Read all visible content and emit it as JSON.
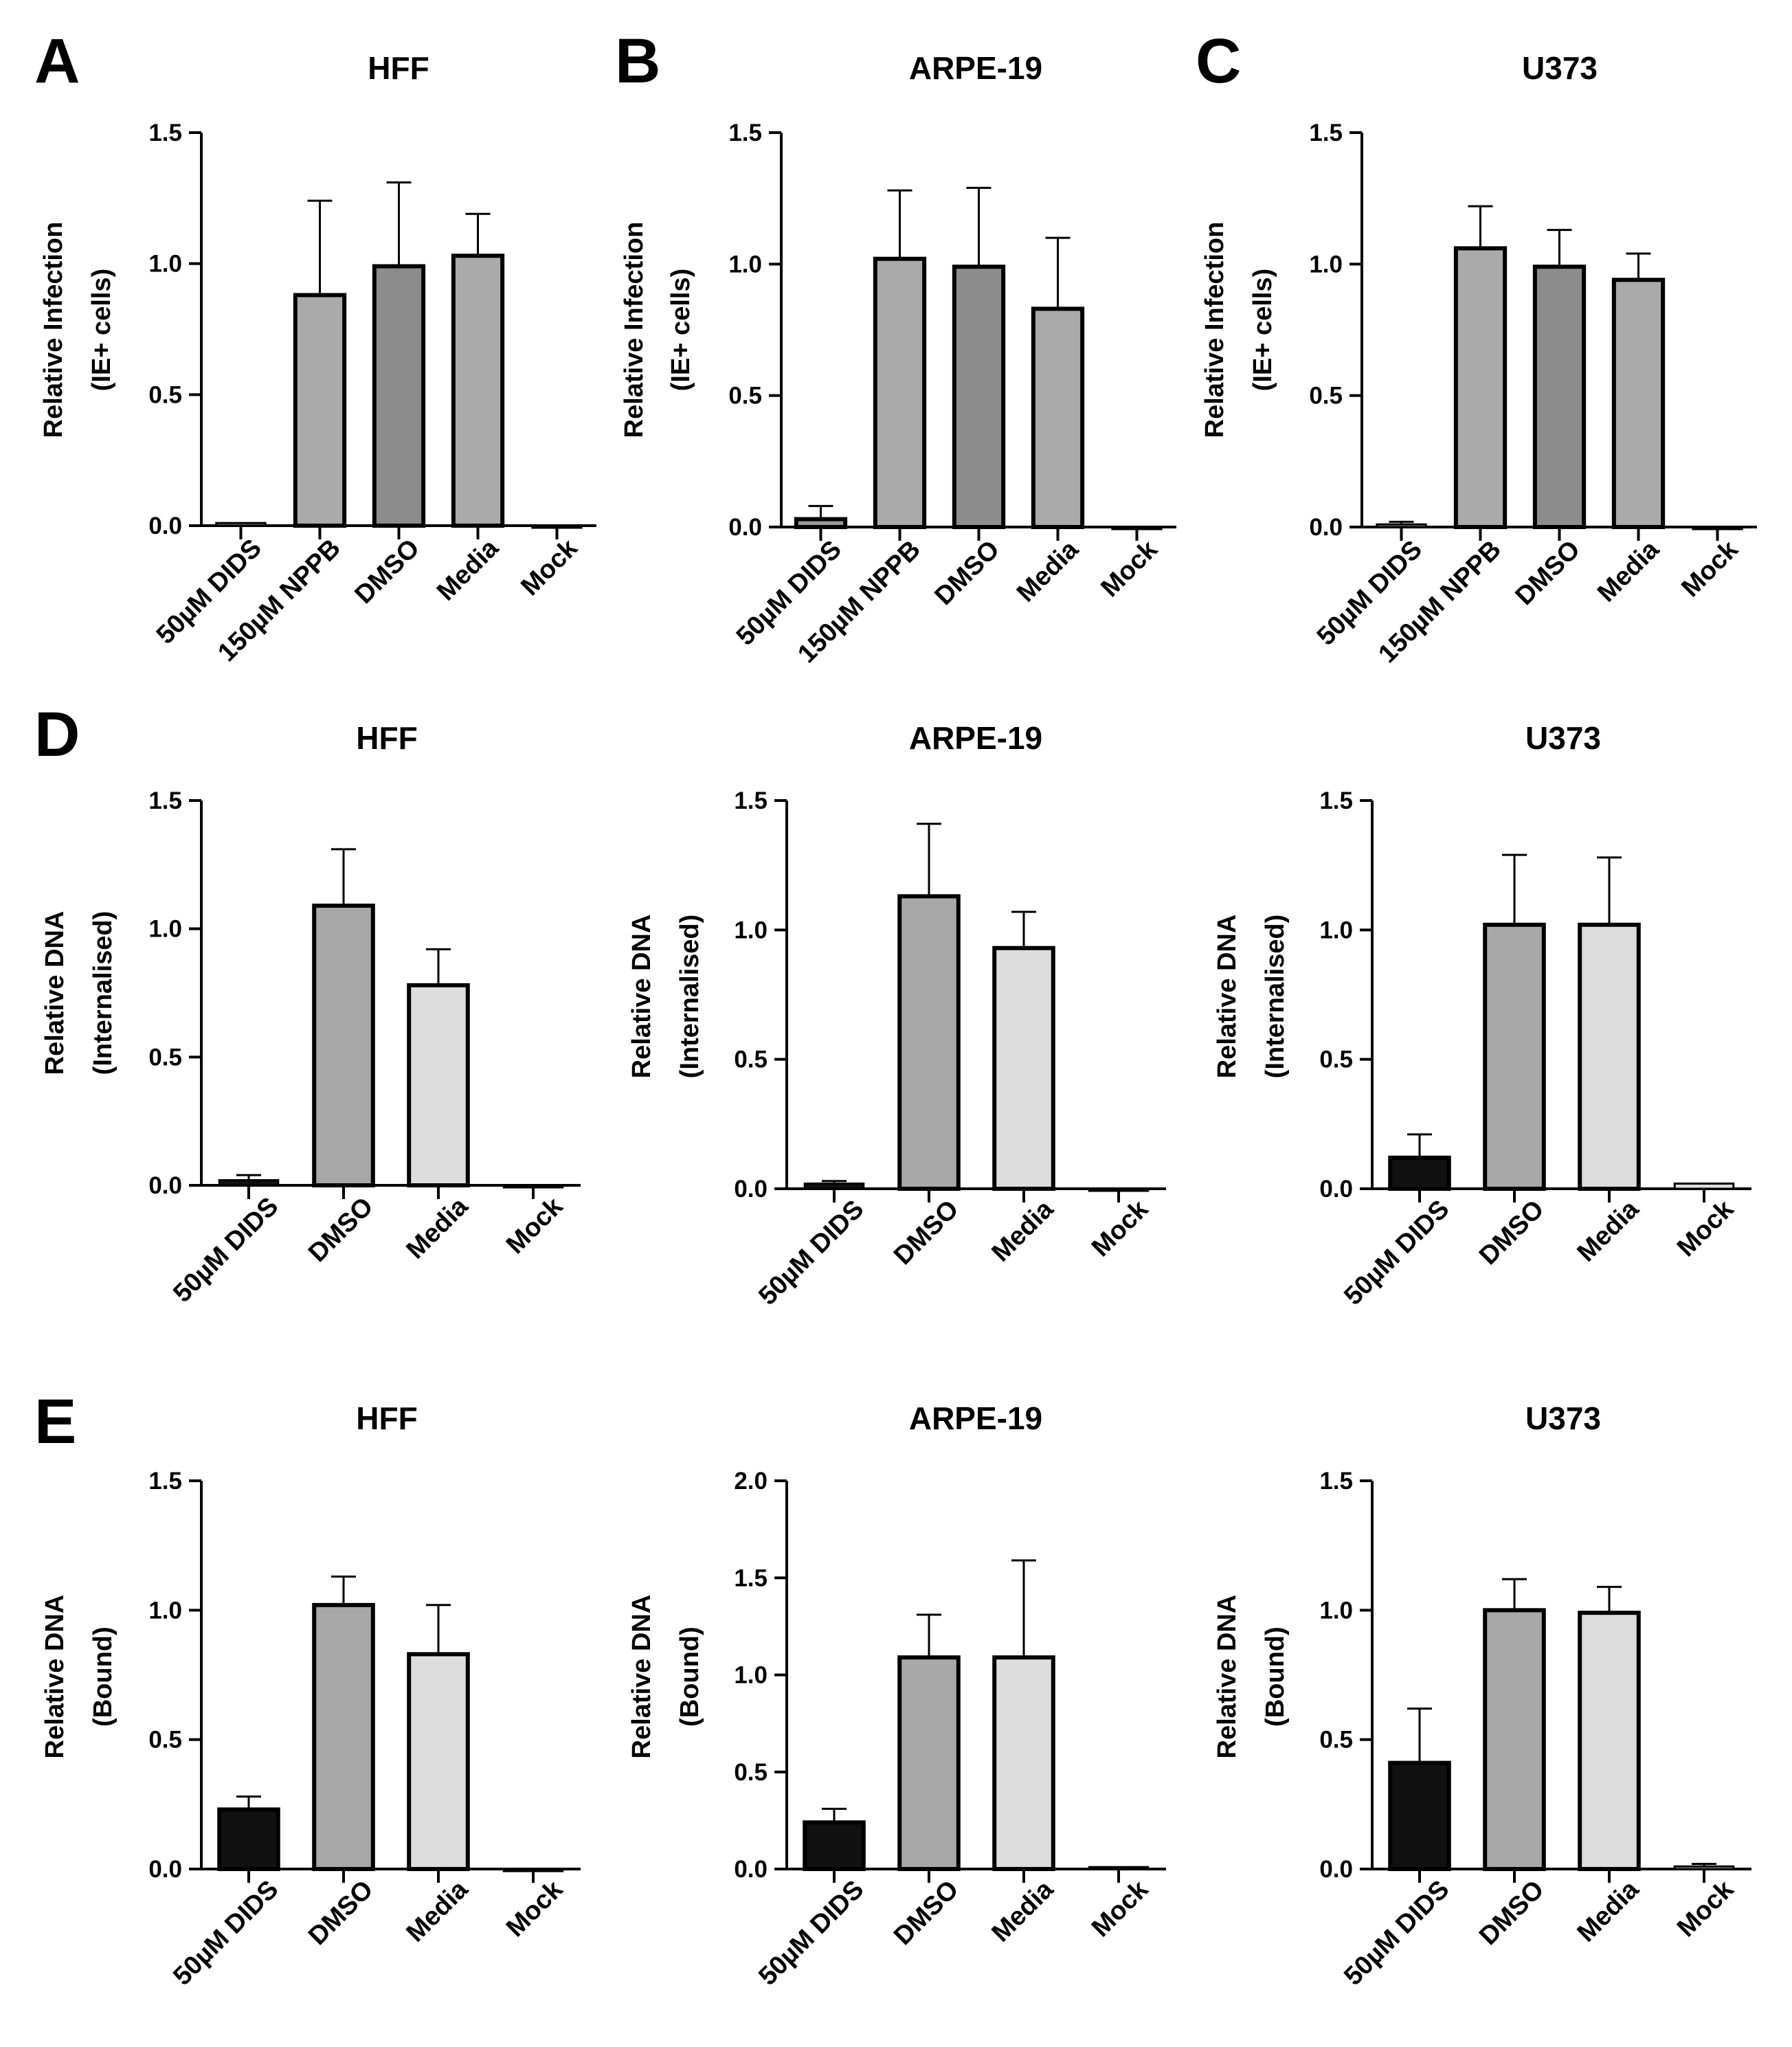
{
  "figure": {
    "panel_letters": [
      "A",
      "B",
      "C",
      "D",
      "E"
    ]
  },
  "chart_data": [
    {
      "type": "bar",
      "panel": "A",
      "title": "HFF",
      "ylabel": [
        "Relative Infection",
        "(IE+ cells)"
      ],
      "ylim": [
        0,
        1.5
      ],
      "yticks": [
        "0.0",
        "0.5",
        "1.0",
        "1.5"
      ],
      "categories": [
        "50µM DIDS",
        "150µM NPPB",
        "DMSO",
        "Media",
        "Mock"
      ],
      "values": [
        0.01,
        0.88,
        0.99,
        1.03,
        0.0
      ],
      "errors": [
        0.0,
        0.36,
        0.32,
        0.16,
        0.0
      ],
      "colors": [
        "#999999",
        "#aaaaaa",
        "#8c8c8c",
        "#aaaaaa",
        "#aaaaaa"
      ]
    },
    {
      "type": "bar",
      "panel": "B",
      "title": "ARPE-19",
      "ylabel": [
        "Relative Infection",
        "(IE+ cells)"
      ],
      "ylim": [
        0,
        1.5
      ],
      "yticks": [
        "0.0",
        "0.5",
        "1.0",
        "1.5"
      ],
      "categories": [
        "50µM DIDS",
        "150µM NPPB",
        "DMSO",
        "Media",
        "Mock"
      ],
      "values": [
        0.03,
        1.02,
        0.99,
        0.83,
        0.0
      ],
      "errors": [
        0.05,
        0.26,
        0.3,
        0.27,
        0.0
      ],
      "colors": [
        "#999999",
        "#aaaaaa",
        "#8c8c8c",
        "#aaaaaa",
        "#aaaaaa"
      ]
    },
    {
      "type": "bar",
      "panel": "C",
      "title": "U373",
      "ylabel": [
        "Relative Infection",
        "(IE+ cells)"
      ],
      "ylim": [
        0,
        1.5
      ],
      "yticks": [
        "0.0",
        "0.5",
        "1.0",
        "1.5"
      ],
      "categories": [
        "50µM DIDS",
        "150µM NPPB",
        "DMSO",
        "Media",
        "Mock"
      ],
      "values": [
        0.01,
        1.06,
        0.99,
        0.94,
        0.0
      ],
      "errors": [
        0.01,
        0.16,
        0.14,
        0.1,
        0.0
      ],
      "colors": [
        "#999999",
        "#aaaaaa",
        "#8c8c8c",
        "#aaaaaa",
        "#aaaaaa"
      ]
    },
    {
      "type": "bar",
      "panel": "D",
      "title": "HFF",
      "ylabel": [
        "Relative DNA",
        "(Internalised)"
      ],
      "ylim": [
        0,
        1.5
      ],
      "yticks": [
        "0.0",
        "0.5",
        "1.0",
        "1.5"
      ],
      "categories": [
        "50µM DIDS",
        "DMSO",
        "Media",
        "Mock"
      ],
      "values": [
        0.02,
        1.09,
        0.78,
        0.0
      ],
      "errors": [
        0.02,
        0.22,
        0.14,
        0.0
      ],
      "colors": [
        "#111111",
        "#a8a8a8",
        "#dddddd",
        "#dddddd"
      ]
    },
    {
      "type": "bar",
      "panel": "",
      "title": "ARPE-19",
      "ylabel": [
        "Relative DNA",
        "(Internalised)"
      ],
      "ylim": [
        0,
        1.5
      ],
      "yticks": [
        "0.0",
        "0.5",
        "1.0",
        "1.5"
      ],
      "categories": [
        "50µM DIDS",
        "DMSO",
        "Media",
        "Mock"
      ],
      "values": [
        0.02,
        1.13,
        0.93,
        0.0
      ],
      "errors": [
        0.01,
        0.28,
        0.14,
        0.0
      ],
      "colors": [
        "#111111",
        "#a8a8a8",
        "#dddddd",
        "#dddddd"
      ]
    },
    {
      "type": "bar",
      "panel": "",
      "title": "U373",
      "ylabel": [
        "Relative DNA",
        "(Internalised)"
      ],
      "ylim": [
        0,
        1.5
      ],
      "yticks": [
        "0.0",
        "0.5",
        "1.0",
        "1.5"
      ],
      "categories": [
        "50µM DIDS",
        "DMSO",
        "Media",
        "Mock"
      ],
      "values": [
        0.12,
        1.02,
        1.02,
        0.02
      ],
      "errors": [
        0.09,
        0.27,
        0.26,
        0.0
      ],
      "colors": [
        "#111111",
        "#a8a8a8",
        "#dddddd",
        "#dddddd"
      ]
    },
    {
      "type": "bar",
      "panel": "E",
      "title": "HFF",
      "ylabel": [
        "Relative  DNA",
        "(Bound)"
      ],
      "ylim": [
        0,
        1.5
      ],
      "yticks": [
        "0.0",
        "0.5",
        "1.0",
        "1.5"
      ],
      "categories": [
        "50µM DIDS",
        "DMSO",
        "Media",
        "Mock"
      ],
      "values": [
        0.23,
        1.02,
        0.83,
        0.0
      ],
      "errors": [
        0.05,
        0.11,
        0.19,
        0.0
      ],
      "colors": [
        "#111111",
        "#a8a8a8",
        "#dddddd",
        "#dddddd"
      ]
    },
    {
      "type": "bar",
      "panel": "",
      "title": "ARPE-19",
      "ylabel": [
        "Relative DNA",
        "(Bound)"
      ],
      "ylim": [
        0,
        2.0
      ],
      "yticks": [
        "0.0",
        "0.5",
        "1.0",
        "1.5",
        "2.0"
      ],
      "categories": [
        "50µM DIDS",
        "DMSO",
        "Media",
        "Mock"
      ],
      "values": [
        0.24,
        1.09,
        1.09,
        0.01
      ],
      "errors": [
        0.07,
        0.22,
        0.5,
        0.0
      ],
      "colors": [
        "#111111",
        "#a8a8a8",
        "#dddddd",
        "#dddddd"
      ]
    },
    {
      "type": "bar",
      "panel": "",
      "title": "U373",
      "ylabel": [
        "Relative DNA",
        "(Bound)"
      ],
      "ylim": [
        0,
        1.5
      ],
      "yticks": [
        "0.0",
        "0.5",
        "1.0",
        "1.5"
      ],
      "categories": [
        "50µM DIDS",
        "DMSO",
        "Media",
        "Mock"
      ],
      "values": [
        0.41,
        1.0,
        0.99,
        0.01
      ],
      "errors": [
        0.21,
        0.12,
        0.1,
        0.01
      ],
      "colors": [
        "#111111",
        "#a8a8a8",
        "#dddddd",
        "#dddddd"
      ]
    }
  ]
}
